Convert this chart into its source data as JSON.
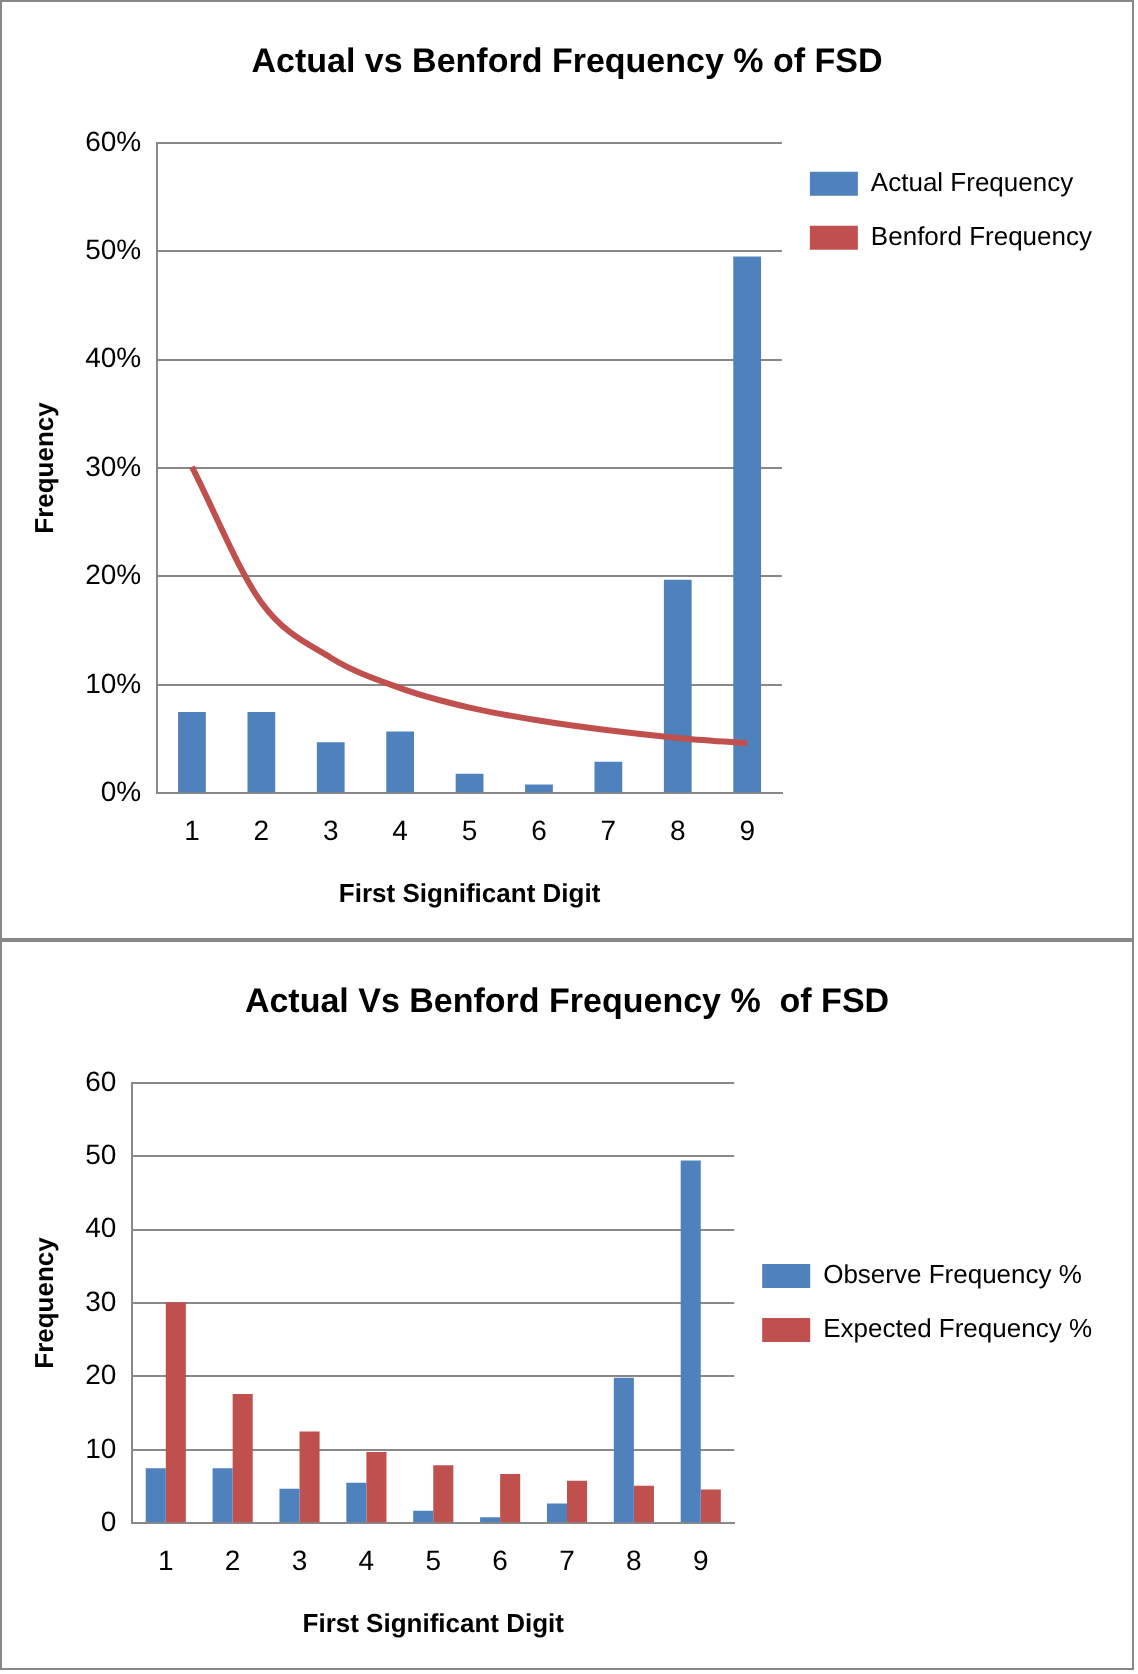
{
  "chart_data": [
    {
      "type": "bar",
      "title": "Actual vs Benford Frequency % of FSD",
      "xlabel": "First Significant Digit",
      "ylabel": "Frequency",
      "categories": [
        "1",
        "2",
        "3",
        "4",
        "5",
        "6",
        "7",
        "8",
        "9"
      ],
      "series": [
        {
          "name": "Actual Frequency",
          "type": "bar",
          "color": "#4f81bd",
          "values": [
            7.5,
            7.5,
            4.7,
            5.7,
            1.8,
            0.8,
            2.9,
            19.7,
            49.5
          ]
        },
        {
          "name": "Benford Frequency",
          "type": "line",
          "color": "#c0504d",
          "values": [
            30.1,
            17.6,
            12.5,
            9.7,
            7.9,
            6.7,
            5.8,
            5.1,
            4.6
          ]
        }
      ],
      "ylim": [
        0,
        60
      ],
      "yticks": [
        {
          "value": 0,
          "label": "0%"
        },
        {
          "value": 10,
          "label": "10%"
        },
        {
          "value": 20,
          "label": "20%"
        },
        {
          "value": 30,
          "label": "30%"
        },
        {
          "value": 40,
          "label": "40%"
        },
        {
          "value": 50,
          "label": "50%"
        },
        {
          "value": 60,
          "label": "60%"
        }
      ],
      "grid": "y",
      "legend": "top right",
      "marker": "none"
    },
    {
      "type": "bar",
      "title": "Actual Vs Benford Frequency %  of FSD",
      "xlabel": "First Significant Digit",
      "ylabel": "Frequency",
      "categories": [
        "1",
        "2",
        "3",
        "4",
        "5",
        "6",
        "7",
        "8",
        "9"
      ],
      "series": [
        {
          "name": "Observe Frequency %",
          "color": "#4f81bd",
          "values": [
            7.5,
            7.5,
            4.7,
            5.5,
            1.7,
            0.8,
            2.7,
            19.8,
            49.4
          ]
        },
        {
          "name": "Expected Frequency %",
          "color": "#c0504d",
          "values": [
            30.1,
            17.6,
            12.5,
            9.7,
            7.9,
            6.7,
            5.8,
            5.1,
            4.6
          ]
        }
      ],
      "ylim": [
        0,
        60
      ],
      "yticks": [
        0,
        10,
        20,
        30,
        40,
        50,
        60
      ],
      "grid": "y",
      "legend": "right"
    }
  ]
}
